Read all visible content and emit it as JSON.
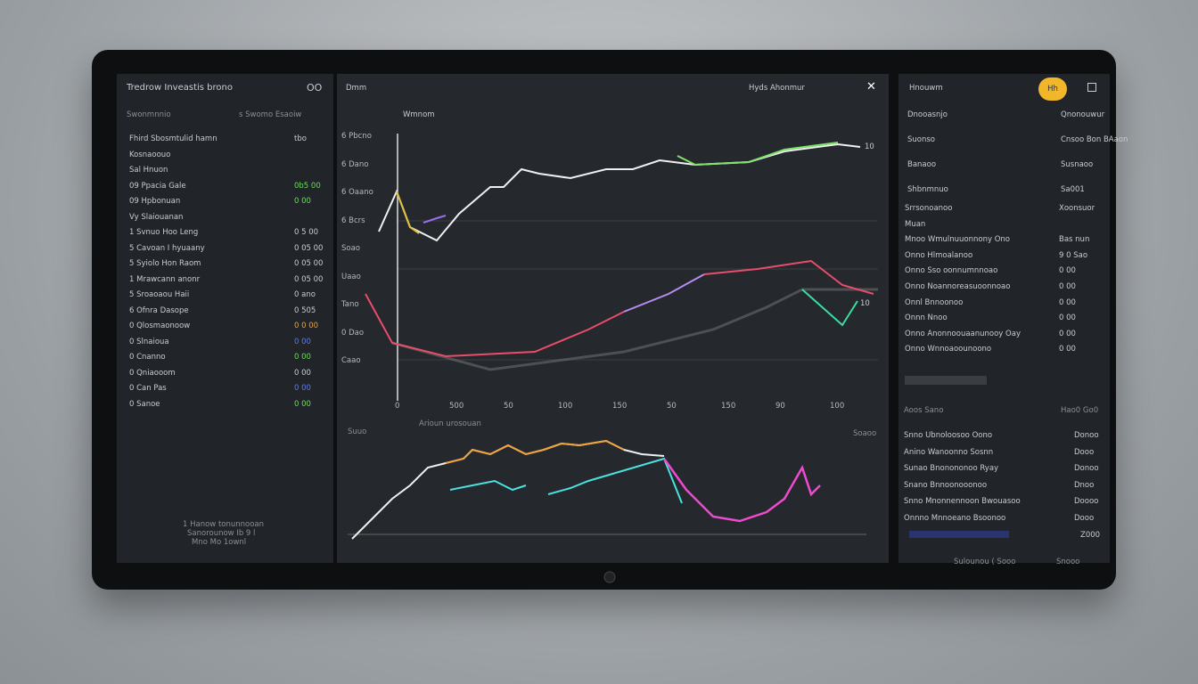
{
  "header": {
    "left_title": "Tredrow Inveastis brono",
    "left_icon": "OO",
    "left_sub": "Swonmnnio",
    "left_sub_right": "s Swomo Esaoiw",
    "center_title": "Dmm",
    "center_tab": "Wmnom",
    "center_right": "Hyds Ahonmur",
    "right_title": "Hnouwm",
    "badge": "Hh"
  },
  "left_list": [
    [
      "Fhird Sbosmtulid hamn",
      "tbo"
    ],
    [
      "Kosnaoouo",
      ""
    ],
    [
      "Sal Hnuon",
      ""
    ],
    [
      "09 Ppacia Gale",
      "0b5 00"
    ],
    [
      "09 Hpbonuan",
      "0 00"
    ],
    [
      "Vy Slaiouanan",
      ""
    ],
    [
      "1 Svnuo Hoo Leng",
      "0 5 00"
    ],
    [
      "5 Cavoan I hyuaany",
      "0 05 00"
    ],
    [
      "5 Syiolo Hon Raom",
      "0 05 00"
    ],
    [
      "1 Mrawcann anonr",
      "0 05 00"
    ],
    [
      "5 Sroaoaou Haii",
      "0 ano"
    ],
    [
      "6 Ofnra Dasope",
      "0 505"
    ],
    [
      "0 Qlosmaonoow",
      "0 0 00"
    ],
    [
      "0 Slnaioua",
      "0 00"
    ],
    [
      "0 Cnanno",
      "0 00"
    ],
    [
      "0 Qniaooom",
      "0 00"
    ],
    [
      "0 Can Pas",
      "0 00"
    ],
    [
      "0 Sanoe",
      "0 00"
    ]
  ],
  "left_foot": [
    "1 Hanow tonunnooan",
    "Sanorounow Ib 9 l",
    "Mno Mo 1ownl"
  ],
  "chart_y": [
    "6 Pbcno",
    "6 Dano",
    "6 Oaano",
    "6 Bcrs",
    "Soao",
    "Uaao",
    "Tano",
    "0 Dao",
    "Caao"
  ],
  "chart_x": [
    "0",
    "500",
    "50",
    "100",
    "150",
    "50",
    "150",
    "90",
    "100"
  ],
  "chart_tags": [
    "10",
    "10"
  ],
  "lower_title": "Arioun urosouan",
  "lower_left": "Suuo",
  "lower_right": "Soaoo",
  "right_head": [
    "Dnooasnjo",
    "Qnonouwur",
    "Suonso",
    "Cnsoo Bon BAaon",
    "Banaoo",
    "Susnaoo",
    "Shbnmnuo",
    "Sa001"
  ],
  "right_list": [
    [
      "Srrsonoanoo",
      "Xoonsuor"
    ],
    [
      "Muan",
      ""
    ],
    [
      "Mnoo Wmulnuuonnony Ono",
      "Bas nun"
    ],
    [
      "Onno Hlmoalanoo",
      "9 0 Sao"
    ],
    [
      "Onno Sso oonnumnnoao",
      "0 00"
    ],
    [
      "Onno Noannoreasuoonnoao",
      "0 00"
    ],
    [
      "Onnl Bnnoonoo",
      "0 00"
    ],
    [
      "Onnn Nnoo",
      "0 00"
    ],
    [
      "Onno Anonnoouaanunooy Oay",
      "0 00"
    ],
    [
      "Onno Wnnoaoounoono",
      "0 00"
    ]
  ],
  "right_mid": [
    "Aoos Sano",
    "Hao0 Go0"
  ],
  "right_list2": [
    [
      "Snno Ubnoloosoo Oono",
      "Donoo"
    ],
    [
      "Anino Wanoonno Sosnn",
      "Dooo"
    ],
    [
      "Sunao Bnonononoo Ryay",
      "Donoo"
    ],
    [
      "Snano Bnnoonooonoo",
      "Dnoo"
    ],
    [
      "Snno Mnonnennoon Bwouasoo",
      "Doooo"
    ],
    [
      "Onnno Mnnoeano Bsoonoo",
      "Dooo"
    ]
  ],
  "right_foot": [
    "Z000",
    "Sulounou ( Sooo",
    "Snooo"
  ]
}
